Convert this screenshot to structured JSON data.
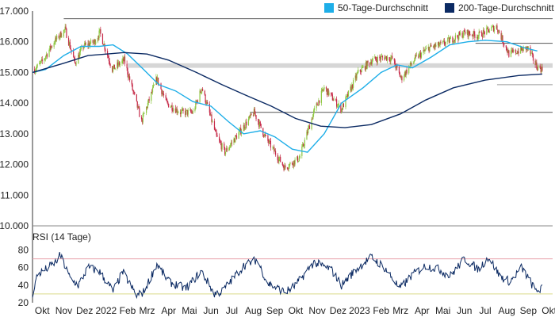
{
  "chart_data": [
    {
      "type": "candlestick",
      "title": "",
      "colors": {
        "up": "#8cc63f",
        "down": "#c62a48",
        "ma50": "#1eaee8",
        "ma200": "#0b2a63",
        "resistance": "#555555",
        "support": "#9a9a9a",
        "zone": "#d6d6d6"
      },
      "legend": [
        {
          "label": "50-Tage-Durchschnitt",
          "color": "#1eaee8"
        },
        {
          "label": "200-Tage-Durchschnitt",
          "color": "#0b2a63"
        }
      ],
      "y_ticks": [
        "17.000",
        "16.000",
        "15.000",
        "14.000",
        "13.000",
        "12.000",
        "11.000",
        "10.000"
      ],
      "ylim": [
        10000,
        17000
      ],
      "x_range": [
        "2021-10-01",
        "2023-10-20"
      ],
      "x_ticks": [
        {
          "label": "Okt",
          "date": "2021-10-15"
        },
        {
          "label": "Nov",
          "date": "2021-11-15"
        },
        {
          "label": "Dez",
          "date": "2021-12-15"
        },
        {
          "label": "2022",
          "date": "2022-01-15"
        },
        {
          "label": "Feb",
          "date": "2022-02-15"
        },
        {
          "label": "Mrz",
          "date": "2022-03-15"
        },
        {
          "label": "Apr",
          "date": "2022-04-15"
        },
        {
          "label": "Mai",
          "date": "2022-05-15"
        },
        {
          "label": "Jun",
          "date": "2022-06-15"
        },
        {
          "label": "Jul",
          "date": "2022-07-15"
        },
        {
          "label": "Aug",
          "date": "2022-08-15"
        },
        {
          "label": "Sep",
          "date": "2022-09-15"
        },
        {
          "label": "Okt",
          "date": "2022-10-15"
        },
        {
          "label": "Nov",
          "date": "2022-11-15"
        },
        {
          "label": "Dez",
          "date": "2022-12-15"
        },
        {
          "label": "2023",
          "date": "2023-01-15"
        },
        {
          "label": "Feb",
          "date": "2023-02-15"
        },
        {
          "label": "Mrz",
          "date": "2023-03-15"
        },
        {
          "label": "Apr",
          "date": "2023-04-15"
        },
        {
          "label": "Mai",
          "date": "2023-05-15"
        },
        {
          "label": "Jun",
          "date": "2023-06-15"
        },
        {
          "label": "Jul",
          "date": "2023-07-15"
        },
        {
          "label": "Aug",
          "date": "2023-08-15"
        },
        {
          "label": "Sep",
          "date": "2023-09-15"
        },
        {
          "label": "Okt",
          "date": "2023-10-15"
        }
      ],
      "price_path": [
        [
          "2021-10-04",
          15100
        ],
        [
          "2021-10-15",
          15350
        ],
        [
          "2021-11-01",
          16000
        ],
        [
          "2021-11-17",
          16400
        ],
        [
          "2021-12-01",
          15300
        ],
        [
          "2021-12-13",
          15850
        ],
        [
          "2021-12-29",
          16000
        ],
        [
          "2022-01-06",
          16300
        ],
        [
          "2022-01-24",
          15100
        ],
        [
          "2022-02-10",
          15400
        ],
        [
          "2022-03-07",
          13400
        ],
        [
          "2022-03-29",
          14800
        ],
        [
          "2022-04-12",
          14000
        ],
        [
          "2022-05-02",
          13700
        ],
        [
          "2022-05-20",
          13700
        ],
        [
          "2022-06-02",
          14500
        ],
        [
          "2022-06-23",
          12900
        ],
        [
          "2022-07-05",
          12400
        ],
        [
          "2022-08-16",
          13700
        ],
        [
          "2022-09-01",
          12900
        ],
        [
          "2022-09-29",
          11900
        ],
        [
          "2022-10-20",
          12200
        ],
        [
          "2022-11-10",
          13700
        ],
        [
          "2022-11-25",
          14500
        ],
        [
          "2022-12-20",
          13800
        ],
        [
          "2023-01-13",
          15000
        ],
        [
          "2023-02-02",
          15400
        ],
        [
          "2023-02-20",
          15500
        ],
        [
          "2023-03-03",
          15450
        ],
        [
          "2023-03-16",
          14800
        ],
        [
          "2023-04-05",
          15450
        ],
        [
          "2023-04-25",
          15800
        ],
        [
          "2023-05-12",
          15900
        ],
        [
          "2023-06-16",
          16300
        ],
        [
          "2023-07-04",
          16200
        ],
        [
          "2023-07-31",
          16500
        ],
        [
          "2023-08-18",
          15600
        ],
        [
          "2023-09-14",
          15800
        ],
        [
          "2023-09-27",
          15200
        ],
        [
          "2023-10-05",
          15100
        ]
      ],
      "ma50_path": [
        [
          "2021-10-01",
          15000
        ],
        [
          "2021-10-20",
          15100
        ],
        [
          "2021-11-15",
          15550
        ],
        [
          "2021-12-10",
          15850
        ],
        [
          "2022-01-05",
          15850
        ],
        [
          "2022-01-25",
          15900
        ],
        [
          "2022-02-15",
          15600
        ],
        [
          "2022-03-10",
          15100
        ],
        [
          "2022-04-01",
          14600
        ],
        [
          "2022-04-25",
          14400
        ],
        [
          "2022-05-20",
          14050
        ],
        [
          "2022-06-15",
          13900
        ],
        [
          "2022-07-10",
          13400
        ],
        [
          "2022-08-01",
          13000
        ],
        [
          "2022-08-25",
          13100
        ],
        [
          "2022-09-15",
          12900
        ],
        [
          "2022-10-10",
          12500
        ],
        [
          "2022-11-01",
          12400
        ],
        [
          "2022-11-25",
          13000
        ],
        [
          "2022-12-20",
          14000
        ],
        [
          "2023-01-20",
          14500
        ],
        [
          "2023-02-15",
          15000
        ],
        [
          "2023-03-10",
          15250
        ],
        [
          "2023-04-01",
          15150
        ],
        [
          "2023-04-28",
          15500
        ],
        [
          "2023-05-25",
          15900
        ],
        [
          "2023-06-20",
          16000
        ],
        [
          "2023-07-15",
          16050
        ],
        [
          "2023-08-15",
          16000
        ],
        [
          "2023-09-10",
          15800
        ],
        [
          "2023-09-28",
          15700
        ]
      ],
      "ma200_path": [
        [
          "2021-10-01",
          15000
        ],
        [
          "2021-11-15",
          15300
        ],
        [
          "2021-12-20",
          15550
        ],
        [
          "2022-02-10",
          15650
        ],
        [
          "2022-03-15",
          15600
        ],
        [
          "2022-04-15",
          15400
        ],
        [
          "2022-05-25",
          15000
        ],
        [
          "2022-07-01",
          14600
        ],
        [
          "2022-08-05",
          14250
        ],
        [
          "2022-09-10",
          13900
        ],
        [
          "2022-10-15",
          13500
        ],
        [
          "2022-11-20",
          13250
        ],
        [
          "2022-12-25",
          13200
        ],
        [
          "2023-02-01",
          13300
        ],
        [
          "2023-03-15",
          13650
        ],
        [
          "2023-04-20",
          14100
        ],
        [
          "2023-05-30",
          14500
        ],
        [
          "2023-07-15",
          14750
        ],
        [
          "2023-09-01",
          14900
        ],
        [
          "2023-10-05",
          14950
        ]
      ],
      "resistance_lines": [
        {
          "value": 16750,
          "from": "2021-11-15",
          "to": "2023-10-20"
        },
        {
          "value": 15950,
          "from": "2023-07-01",
          "to": "2023-10-20"
        },
        {
          "value": 13700,
          "from": "2022-08-10",
          "to": "2023-10-20"
        }
      ],
      "support_lines": [
        {
          "value": 14600,
          "from": "2023-08-01",
          "to": "2023-10-20"
        }
      ],
      "zones": [
        {
          "from_value": 15150,
          "to_value": 15300,
          "from": "2022-02-15",
          "to": "2023-10-20"
        }
      ]
    },
    {
      "type": "line",
      "title": "RSI (14 Tage)",
      "y_ticks": [
        "80",
        "60",
        "40",
        "20"
      ],
      "ylim": [
        20,
        85
      ],
      "overbought": 70,
      "oversold": 30,
      "colors": {
        "line": "#0b2a63",
        "overbought": "#e8a0aa",
        "oversold": "#d9d98a"
      },
      "path": [
        [
          "2021-10-01",
          30
        ],
        [
          "2021-10-08",
          52
        ],
        [
          "2021-10-20",
          58
        ],
        [
          "2021-11-03",
          66
        ],
        [
          "2021-11-10",
          74
        ],
        [
          "2021-11-24",
          48
        ],
        [
          "2021-12-06",
          40
        ],
        [
          "2021-12-20",
          60
        ],
        [
          "2022-01-05",
          56
        ],
        [
          "2022-01-25",
          33
        ],
        [
          "2022-02-08",
          55
        ],
        [
          "2022-02-28",
          28
        ],
        [
          "2022-03-10",
          32
        ],
        [
          "2022-03-29",
          64
        ],
        [
          "2022-04-15",
          44
        ],
        [
          "2022-05-10",
          36
        ],
        [
          "2022-06-01",
          56
        ],
        [
          "2022-06-20",
          30
        ],
        [
          "2022-07-01",
          33
        ],
        [
          "2022-08-01",
          62
        ],
        [
          "2022-08-20",
          69
        ],
        [
          "2022-09-05",
          42
        ],
        [
          "2022-09-30",
          32
        ],
        [
          "2022-10-15",
          40
        ],
        [
          "2022-11-10",
          66
        ],
        [
          "2022-12-05",
          58
        ],
        [
          "2022-12-20",
          40
        ],
        [
          "2023-01-10",
          58
        ],
        [
          "2023-02-01",
          72
        ],
        [
          "2023-02-20",
          60
        ],
        [
          "2023-03-14",
          36
        ],
        [
          "2023-04-01",
          52
        ],
        [
          "2023-04-20",
          62
        ],
        [
          "2023-05-10",
          58
        ],
        [
          "2023-05-25",
          50
        ],
        [
          "2023-06-15",
          70
        ],
        [
          "2023-07-05",
          58
        ],
        [
          "2023-07-20",
          72
        ],
        [
          "2023-08-05",
          50
        ],
        [
          "2023-08-20",
          44
        ],
        [
          "2023-09-05",
          60
        ],
        [
          "2023-09-15",
          48
        ],
        [
          "2023-09-25",
          34
        ],
        [
          "2023-10-05",
          36
        ]
      ]
    }
  ]
}
